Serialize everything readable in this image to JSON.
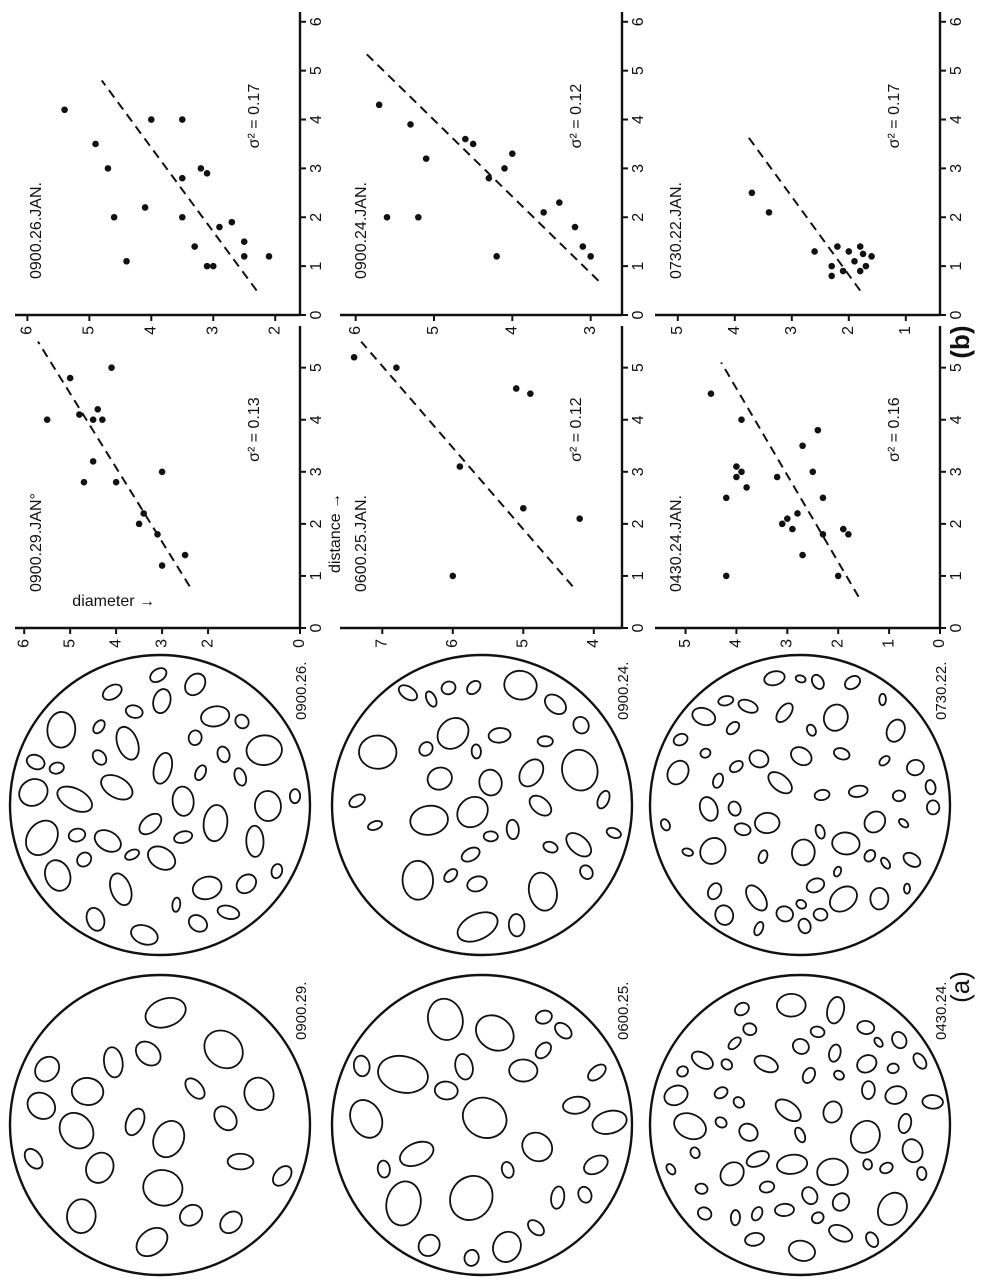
{
  "figure": {
    "panel_a_label": "(a)",
    "panel_b_label": "(b)",
    "circles": [
      {
        "label": "0900.29."
      },
      {
        "label": "0900.26."
      },
      {
        "label": "0600.25."
      },
      {
        "label": "0900.24."
      },
      {
        "label": "0430.24."
      },
      {
        "label": "0730.22."
      }
    ]
  },
  "chart_data": [
    {
      "type": "scatter",
      "title": "0900.29.JAN°",
      "annotation": "σ² = 0.13",
      "xlabel": "distance →",
      "ylabel": "diameter →",
      "color": "#111111",
      "x": [
        1.4,
        1.2,
        1.8,
        2.2,
        2.0,
        3.0,
        2.8,
        3.2,
        2.8,
        4.0,
        4.0,
        4.0,
        4.1,
        5.0,
        4.8,
        4.2
      ],
      "values": [
        2.5,
        3.0,
        3.1,
        3.4,
        3.5,
        3.0,
        4.0,
        4.5,
        4.7,
        4.5,
        4.3,
        5.5,
        4.8,
        4.1,
        5.0,
        4.4
      ],
      "trend": {
        "x": [
          0.8,
          5.5
        ],
        "values": [
          2.4,
          5.7
        ]
      },
      "xlim": [
        0,
        5.8
      ],
      "xticks": [
        0,
        1,
        2,
        3,
        4,
        5
      ],
      "ylim": [
        0,
        6.2
      ],
      "yticks": [
        0,
        2,
        3,
        4,
        5,
        6
      ]
    },
    {
      "type": "scatter",
      "title": "0900.26.JAN.",
      "annotation": "σ² = 0.17",
      "color": "#111111",
      "x": [
        1.1,
        1.0,
        1.0,
        1.2,
        1.2,
        1.5,
        1.9,
        1.8,
        1.4,
        2.0,
        2.0,
        2.2,
        2.8,
        2.9,
        3.0,
        3.0,
        3.5,
        4.0,
        4.2,
        4.0
      ],
      "values": [
        4.4,
        3.1,
        3.0,
        2.5,
        2.1,
        2.5,
        2.7,
        2.9,
        3.3,
        4.6,
        3.5,
        4.1,
        3.5,
        3.1,
        3.2,
        4.7,
        4.9,
        4.0,
        5.4,
        3.5
      ],
      "trend": {
        "x": [
          0.5,
          4.8
        ],
        "values": [
          2.3,
          4.8
        ]
      },
      "xlim": [
        0,
        6.2
      ],
      "xticks": [
        0,
        1,
        2,
        3,
        4,
        5,
        6
      ],
      "ylim": [
        1.6,
        6.2
      ],
      "yticks": [
        2,
        3,
        4,
        5,
        6
      ]
    },
    {
      "type": "scatter",
      "title": "0600.25.JAN.",
      "annotation": "σ² = 0.12",
      "color": "#111111",
      "x": [
        1.0,
        2.1,
        2.3,
        3.1,
        4.5,
        4.6,
        5.0,
        5.2
      ],
      "values": [
        6.0,
        4.2,
        5.0,
        5.9,
        4.9,
        5.1,
        6.8,
        7.4
      ],
      "trend": {
        "x": [
          0.8,
          5.5
        ],
        "values": [
          4.3,
          7.3
        ]
      },
      "xlim": [
        0,
        5.8
      ],
      "xticks": [
        0,
        1,
        2,
        3,
        4,
        5
      ],
      "ylim": [
        3.6,
        7.6
      ],
      "yticks": [
        4,
        5,
        6,
        7
      ]
    },
    {
      "type": "scatter",
      "title": "0900.24.JAN.",
      "annotation": "σ² = 0.12",
      "color": "#111111",
      "x": [
        1.2,
        1.4,
        1.2,
        1.8,
        2.0,
        2.0,
        2.1,
        2.3,
        2.8,
        3.0,
        3.2,
        3.3,
        3.5,
        3.6,
        3.9,
        4.3
      ],
      "values": [
        3.0,
        3.1,
        4.2,
        3.2,
        5.2,
        5.6,
        3.6,
        3.4,
        4.3,
        4.1,
        5.1,
        4.0,
        4.5,
        4.6,
        5.3,
        5.7
      ],
      "trend": {
        "x": [
          0.7,
          5.4
        ],
        "values": [
          2.9,
          5.9
        ]
      },
      "xlim": [
        0,
        6.2
      ],
      "xticks": [
        0,
        1,
        2,
        3,
        4,
        5,
        6
      ],
      "ylim": [
        2.6,
        6.2
      ],
      "yticks": [
        3,
        4,
        5,
        6
      ]
    },
    {
      "type": "scatter",
      "title": "0430.24.JAN.",
      "annotation": "σ² = 0.16",
      "color": "#111111",
      "x": [
        1.0,
        1.0,
        1.4,
        1.8,
        1.8,
        1.9,
        2.0,
        2.1,
        2.2,
        2.5,
        2.5,
        2.7,
        2.9,
        2.9,
        3.0,
        3.0,
        3.1,
        3.5,
        3.8,
        4.0,
        4.5,
        1.9
      ],
      "values": [
        4.2,
        2.0,
        2.7,
        2.3,
        1.8,
        1.9,
        3.1,
        3.0,
        2.8,
        2.3,
        4.2,
        3.8,
        3.2,
        4.0,
        3.9,
        2.5,
        4.0,
        2.7,
        2.4,
        3.9,
        4.5,
        2.9
      ],
      "trend": {
        "x": [
          0.6,
          5.1
        ],
        "values": [
          1.6,
          4.3
        ]
      },
      "xlim": [
        0,
        5.8
      ],
      "xticks": [
        0,
        1,
        2,
        3,
        4,
        5
      ],
      "ylim": [
        0,
        5.6
      ],
      "yticks": [
        0,
        1,
        2,
        3,
        4,
        5
      ]
    },
    {
      "type": "scatter",
      "title": "0730.22.JAN.",
      "annotation": "σ² = 0.17",
      "color": "#111111",
      "x": [
        0.9,
        1.0,
        1.1,
        1.2,
        1.0,
        1.3,
        1.4,
        1.25,
        1.4,
        0.9,
        1.3,
        2.1,
        2.5,
        0.8
      ],
      "values": [
        1.8,
        1.7,
        1.9,
        1.6,
        2.3,
        2.0,
        1.8,
        1.75,
        2.2,
        2.1,
        2.6,
        3.4,
        3.7,
        2.3
      ],
      "trend": {
        "x": [
          0.5,
          3.7
        ],
        "values": [
          1.8,
          3.8
        ]
      },
      "xlim": [
        0,
        6.2
      ],
      "xticks": [
        0,
        1,
        2,
        3,
        4,
        5,
        6
      ],
      "ylim": [
        0.4,
        5.4
      ],
      "yticks": [
        1,
        2,
        3,
        4,
        5
      ]
    }
  ]
}
